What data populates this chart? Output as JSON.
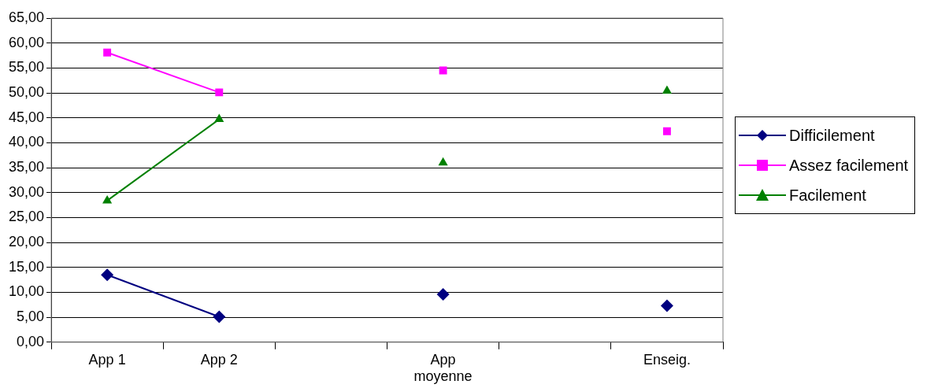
{
  "chart_data": {
    "type": "line",
    "categories": [
      "App 1",
      "App 2",
      null,
      "App moyenne",
      null,
      "Enseig."
    ],
    "series": [
      {
        "name": "Difficilement",
        "color": "#000080",
        "marker": "diamond",
        "values": [
          13.5,
          5.1,
          null,
          9.6,
          null,
          7.3
        ]
      },
      {
        "name": "Assez facilement",
        "color": "#ff00ff",
        "marker": "square",
        "values": [
          58.1,
          50.1,
          null,
          54.5,
          null,
          42.3
        ]
      },
      {
        "name": "Facilement",
        "color": "#008000",
        "marker": "triangle",
        "values": [
          28.4,
          44.7,
          null,
          36.0,
          null,
          50.4
        ]
      }
    ],
    "ylim": [
      0,
      65
    ],
    "yticks": [
      {
        "value": 0,
        "label": "0,00"
      },
      {
        "value": 5,
        "label": "5,00"
      },
      {
        "value": 10,
        "label": "10,00"
      },
      {
        "value": 15,
        "label": "15,00"
      },
      {
        "value": 20,
        "label": "20,00"
      },
      {
        "value": 25,
        "label": "25,00"
      },
      {
        "value": 30,
        "label": "30,00"
      },
      {
        "value": 35,
        "label": "35,00"
      },
      {
        "value": 40,
        "label": "40,00"
      },
      {
        "value": 45,
        "label": "45,00"
      },
      {
        "value": 50,
        "label": "50,00"
      },
      {
        "value": 55,
        "label": "55,00"
      },
      {
        "value": 60,
        "label": "60,00"
      },
      {
        "value": 65,
        "label": "65,00"
      }
    ],
    "grid": "y",
    "legend": "right"
  }
}
